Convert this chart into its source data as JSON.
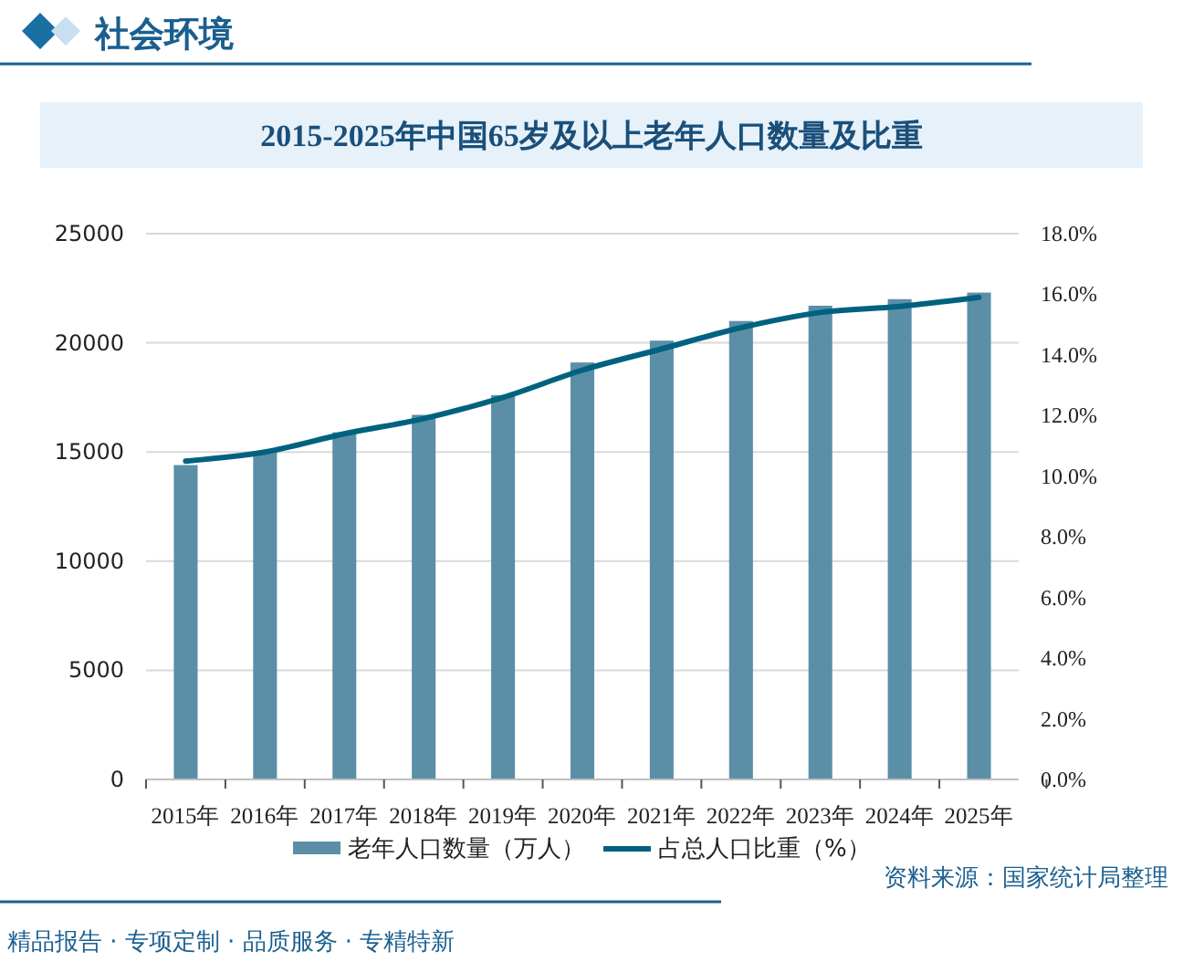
{
  "chart_data": {
    "type": "bar",
    "title": "2015-2025年中国65岁及以上老年人口数量及比重",
    "subtitle": "社会环境",
    "categories": [
      "2015年",
      "2016年",
      "2017年",
      "2018年",
      "2019年",
      "2020年",
      "2021年",
      "2022年",
      "2023年",
      "2024年",
      "2025年"
    ],
    "series": [
      {
        "name": "老年人口数量（万人）",
        "color": "#5b8fa8",
        "values": [
          14400,
          15000,
          15900,
          16700,
          17600,
          19100,
          20100,
          21000,
          21700,
          22000,
          22300
        ]
      },
      {
        "name": "占总人口比重（%）",
        "type": "line",
        "axis": "y2",
        "color": "#00627f",
        "values": [
          10.5,
          10.8,
          11.4,
          11.9,
          12.6,
          13.5,
          14.2,
          14.9,
          15.4,
          15.6,
          15.9
        ]
      }
    ],
    "ylim": [
      0,
      25000
    ],
    "yticks": [
      0,
      5000,
      10000,
      15000,
      20000,
      25000
    ],
    "y2lim": [
      0,
      18
    ],
    "y2ticks": [
      {
        "value": 0,
        "label": "0.0%"
      },
      {
        "value": 2,
        "label": "2.0%"
      },
      {
        "value": 4,
        "label": "4.0%"
      },
      {
        "value": 6,
        "label": "6.0%"
      },
      {
        "value": 8,
        "label": "8.0%"
      },
      {
        "value": 10,
        "label": "10.0%"
      },
      {
        "value": 12,
        "label": "12.0%"
      },
      {
        "value": 14,
        "label": "14.0%"
      },
      {
        "value": 16,
        "label": "16.0%"
      },
      {
        "value": 18,
        "label": "18.0%"
      }
    ],
    "grid": "y",
    "legend": "bottom",
    "marker": "none",
    "line_style": "solid",
    "annotations": [
      "资料来源：国家统计局整理",
      "精品报告 · 专项定制 · 品质服务 · 专精特新"
    ]
  }
}
